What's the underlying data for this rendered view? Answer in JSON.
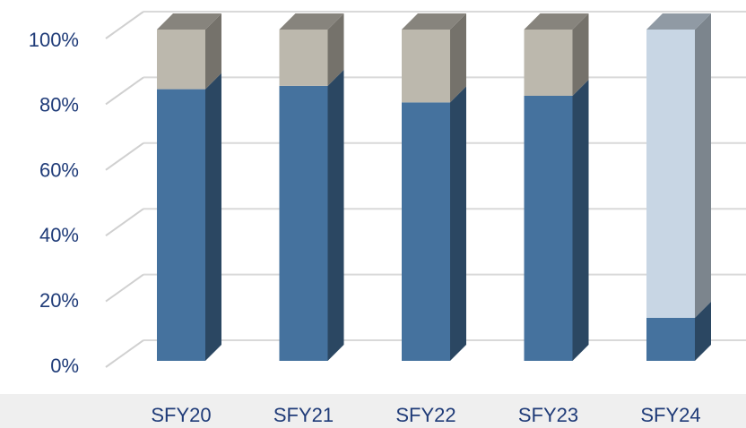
{
  "chart_data": {
    "type": "bar3d_stacked",
    "categories": [
      "SFY20",
      "SFY21",
      "SFY22",
      "SFY23",
      "SFY24"
    ],
    "series": [
      {
        "colors": [
          "#45729e",
          "#45729e",
          "#45729e",
          "#45729e",
          "#45729e"
        ],
        "values": [
          82,
          83,
          78,
          80,
          13
        ]
      },
      {
        "colors": [
          "#bcb8ad",
          "#bcb8ad",
          "#bcb8ad",
          "#bcb8ad",
          "#c8d6e4"
        ],
        "values": [
          18,
          17,
          22,
          20,
          87
        ]
      }
    ],
    "ylim": [
      0,
      100
    ],
    "yticks": [
      {
        "value": 0,
        "label": "0%"
      },
      {
        "value": 20,
        "label": "20%"
      },
      {
        "value": 40,
        "label": "40%"
      },
      {
        "value": 60,
        "label": "60%"
      },
      {
        "value": 80,
        "label": "80%"
      },
      {
        "value": 100,
        "label": "100%"
      }
    ],
    "grid": true
  }
}
